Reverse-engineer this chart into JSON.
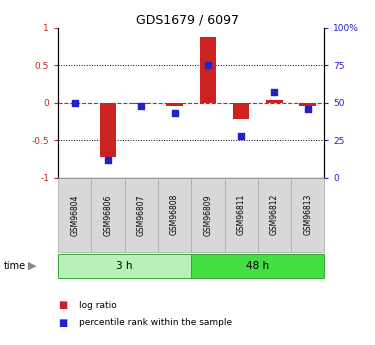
{
  "title": "GDS1679 / 6097",
  "samples": [
    "GSM96804",
    "GSM96806",
    "GSM96807",
    "GSM96808",
    "GSM96809",
    "GSM96811",
    "GSM96812",
    "GSM96813"
  ],
  "log_ratio": [
    0.0,
    -0.72,
    -0.02,
    -0.05,
    0.87,
    -0.22,
    0.03,
    -0.04
  ],
  "percentile_rank": [
    50,
    12,
    48,
    43,
    75,
    28,
    57,
    46
  ],
  "groups": [
    {
      "label": "3 h",
      "count": 4,
      "color": "#b8f0b8"
    },
    {
      "label": "48 h",
      "count": 4,
      "color": "#44dd44"
    }
  ],
  "ylim_left": [
    -1,
    1
  ],
  "ylim_right": [
    0,
    100
  ],
  "yticks_left": [
    -1,
    -0.5,
    0,
    0.5,
    1
  ],
  "ytick_labels_left": [
    "-1",
    "-0.5",
    "0",
    "0.5",
    "1"
  ],
  "yticks_right": [
    0,
    25,
    50,
    75,
    100
  ],
  "ytick_labels_right": [
    "0",
    "25",
    "50",
    "75",
    "100%"
  ],
  "bar_color": "#cc2222",
  "dot_color": "#2222cc",
  "hline_color": "#cc2222",
  "bg_color": "#ffffff",
  "legend_items": [
    {
      "label": "log ratio",
      "color": "#cc2222"
    },
    {
      "label": "percentile rank within the sample",
      "color": "#2222cc"
    }
  ]
}
